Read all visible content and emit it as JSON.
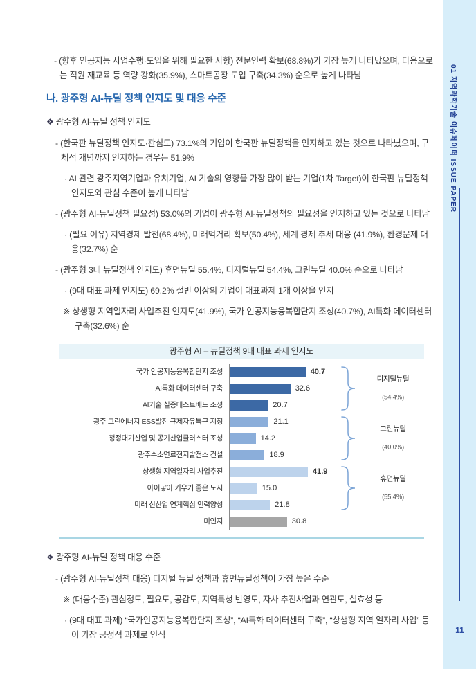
{
  "sidebar": {
    "vertical_text": "01 지역과학기술 이슈페이퍼 ISSUE PAPER",
    "page_number": "11",
    "bg_color": "#d7eefa",
    "accent_color": "#2e4fa5"
  },
  "content": {
    "blocks": [
      {
        "style": "dash-top",
        "marker": "-",
        "text": "(향후 인공지능 사업수행·도입을 위해 필요한 사항) 전문인력 확보(68.8%)가 가장 높게 나타났으며, 다음으로는 직원 재교육 등 역량 강화(35.9%), 스마트공장 도입 구축(34.3%) 순으로 높게 나타남"
      },
      {
        "style": "heading",
        "marker": "",
        "text": "나. 광주형 AI-뉴딜 정책 인지도 및 대응 수준"
      },
      {
        "style": "diamond",
        "marker": "❖",
        "text": "광주형 AI-뉴딜 정책 인지도"
      },
      {
        "style": "dash",
        "marker": "-",
        "text": "(한국판 뉴딜정책 인지도·관심도) 73.1%의 기업이 한국판 뉴딜정책을 인지하고 있는 것으로 나타났으며, 구체적 개념까지 인지하는 경우는 51.9%"
      },
      {
        "style": "dot",
        "marker": "·",
        "text": "AI 관련 광주지역기업과 유치기업, AI 기술의 영향을 가장 많이 받는 기업(1차 Target)이 한국판 뉴딜정책 인지도와 관심 수준이 높게 나타남"
      },
      {
        "style": "dash",
        "marker": "-",
        "text": "(광주형 AI-뉴딜정책 필요성) 53.0%의 기업이 광주형 AI-뉴딜정책의 필요성을 인지하고 있는 것으로 나타남"
      },
      {
        "style": "dot",
        "marker": "·",
        "text": "(필요 이유) 지역경제 발전(68.4%), 미래먹거리 확보(50.4%), 세계 경제 추세 대응 (41.9%), 환경문제 대응(32.7%) 순"
      },
      {
        "style": "dash",
        "marker": "-",
        "text": "(광주형 3대 뉴딜정책 인지도) 휴먼뉴딜 55.4%, 디지털뉴딜 54.4%, 그린뉴딜 40.0% 순으로 나타남"
      },
      {
        "style": "dot",
        "marker": "·",
        "text": "(9대 대표 과제 인지도) 69.2% 절반 이상의 기업이 대표과제 1개 이상을 인지"
      },
      {
        "style": "note",
        "marker": "※",
        "text": "상생형 지역일자리 사업추진 인지도(41.9%), 국가 인공지능융복합단지 조성(40.7%), AI특화 데이터센터 구축(32.6%) 순"
      },
      {
        "style": "chart",
        "marker": "",
        "text": ""
      },
      {
        "style": "diamond",
        "marker": "❖",
        "text": "광주형 AI-뉴딜 정책 대응 수준"
      },
      {
        "style": "dash",
        "marker": "-",
        "text": "(광주형 AI-뉴딜정책 대응) 디지털 뉴딜 정책과 휴먼뉴딜정책이 가장 높은 수준"
      },
      {
        "style": "note",
        "marker": "※",
        "text": "(대응수준) 관심정도, 필요도, 공감도, 지역특성 반영도, 자사 추진사업과 연관도, 실효성 등"
      },
      {
        "style": "dot",
        "marker": "·",
        "text": "(9대 대표 과제) “국가인공지능융복합단지 조성”, “AI특화 데이터센터 구축”, “상생형 지역 일자리 사업” 등이 가장 긍정적 과제로 인식"
      }
    ],
    "heading_color": "#2767ae"
  },
  "chart_data": {
    "type": "bar",
    "orientation": "horizontal",
    "title": "광주형 AI – 뉴딜정책 9대 대표 과제 인지도",
    "categories": [
      "국가 인공지능융복합단지 조성",
      "AI특화 데이터센터 구축",
      "AI기술 실증테스트베드 조성",
      "광주 그린에너지 ESS발전 규제자유특구 지정",
      "청정대기산업 및 공기산업클러스터 조성",
      "광주수소연료전지발전소 건설",
      "상생형 지역일자리 사업추진",
      "아이낳아 키우기 좋은 도시",
      "미래 신산업 연계핵심 인력양성",
      "미인지"
    ],
    "values": [
      40.7,
      32.6,
      20.7,
      21.1,
      14.2,
      18.9,
      41.9,
      15.0,
      21.8,
      30.8
    ],
    "emphasized_indices": [
      0,
      6
    ],
    "bar_colors": [
      "#3c69a5",
      "#3c69a5",
      "#3c69a5",
      "#8baeda",
      "#8baeda",
      "#8baeda",
      "#bdd3ec",
      "#bdd3ec",
      "#bdd3ec",
      "#a6a6a6"
    ],
    "xlim": [
      0,
      50
    ],
    "grid": false,
    "value_labels": true,
    "brace_color": "#7ba4d6",
    "groups": [
      {
        "label": "디지털뉴딜",
        "share": "(54.4%)",
        "from": 0,
        "to": 2
      },
      {
        "label": "그린뉴딜",
        "share": "(40.0%)",
        "from": 3,
        "to": 5
      },
      {
        "label": "휴먼뉴딜",
        "share": "(55.4%)",
        "from": 6,
        "to": 8
      }
    ]
  }
}
